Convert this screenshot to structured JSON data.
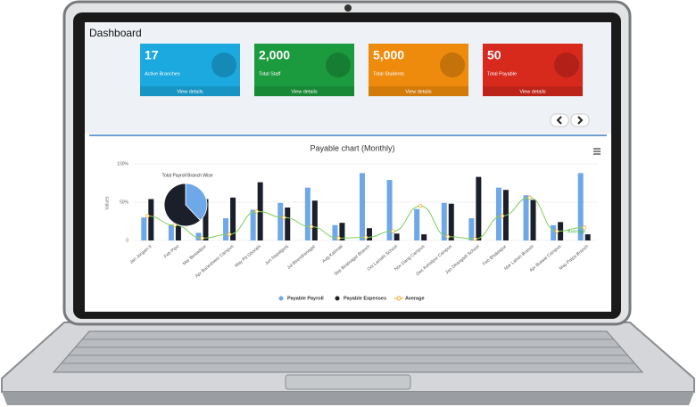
{
  "dashboard": {
    "title": "Dashboard",
    "cards": [
      {
        "value": "17",
        "label": "Active Branches",
        "link": "View details",
        "color": "#1ba9df"
      },
      {
        "value": "2,000",
        "label": "Total Staff",
        "link": "View details",
        "color": "#1c9a3e"
      },
      {
        "value": "5,000",
        "label": "Total Students",
        "link": "View details",
        "color": "#ef8b0c"
      },
      {
        "value": "50",
        "label": "Total Payable",
        "link": "View details",
        "color": "#d8291d"
      }
    ]
  },
  "chart_data": {
    "type": "bar",
    "title": "Payable chart (Monthly)",
    "y_label": "Values",
    "categories": [
      "Jan Jorgain II",
      "Feb Pipo",
      "Mar Bewadpur",
      "Apr Baneshwor Campus",
      "May Pd Ghorahi",
      "Jun Nepalgunj",
      "Jul Birendranagar",
      "Aug Kalimati",
      "Sep Biratnagar Branch",
      "Oct Lamahi School",
      "Nov Dang Campus",
      "Dec Kohalpur Campus",
      "Jan Dhangadi School",
      "Feb Bhaktapur",
      "Mar Lahan Branch",
      "Apr Butwal Campus",
      "May Palpa Branch"
    ],
    "series": [
      {
        "name": "Payable Payroll",
        "color": "#6ea8e8",
        "values": [
          30,
          20,
          10,
          29,
          40,
          49,
          69,
          20,
          88,
          79,
          41,
          49,
          29,
          69,
          59,
          20,
          88
        ]
      },
      {
        "name": "Payable Expenses",
        "color": "#1b1f2a",
        "values": [
          54,
          20,
          54,
          56,
          76,
          43,
          52,
          23,
          16,
          9,
          8,
          48,
          83,
          66,
          53,
          24,
          8
        ]
      },
      {
        "name": "Average",
        "type": "line",
        "color": "#f5a623",
        "line_color": "#7ed05a",
        "values": [
          32,
          20,
          3,
          8,
          38,
          30,
          18,
          3,
          4,
          12,
          45,
          5,
          2,
          32,
          56,
          12,
          17
        ]
      }
    ],
    "ylim": [
      0,
      100
    ],
    "yticks": [
      0,
      {
        "value": 50,
        "label": "50%"
      },
      {
        "value": 100,
        "label": "100%"
      }
    ],
    "annotation": "Average",
    "inset": {
      "type": "pie",
      "title": "Total Payroll Branch Wise",
      "values": [
        38,
        62
      ],
      "colors": [
        "#6ea8e8",
        "#1b1f2a"
      ]
    }
  }
}
